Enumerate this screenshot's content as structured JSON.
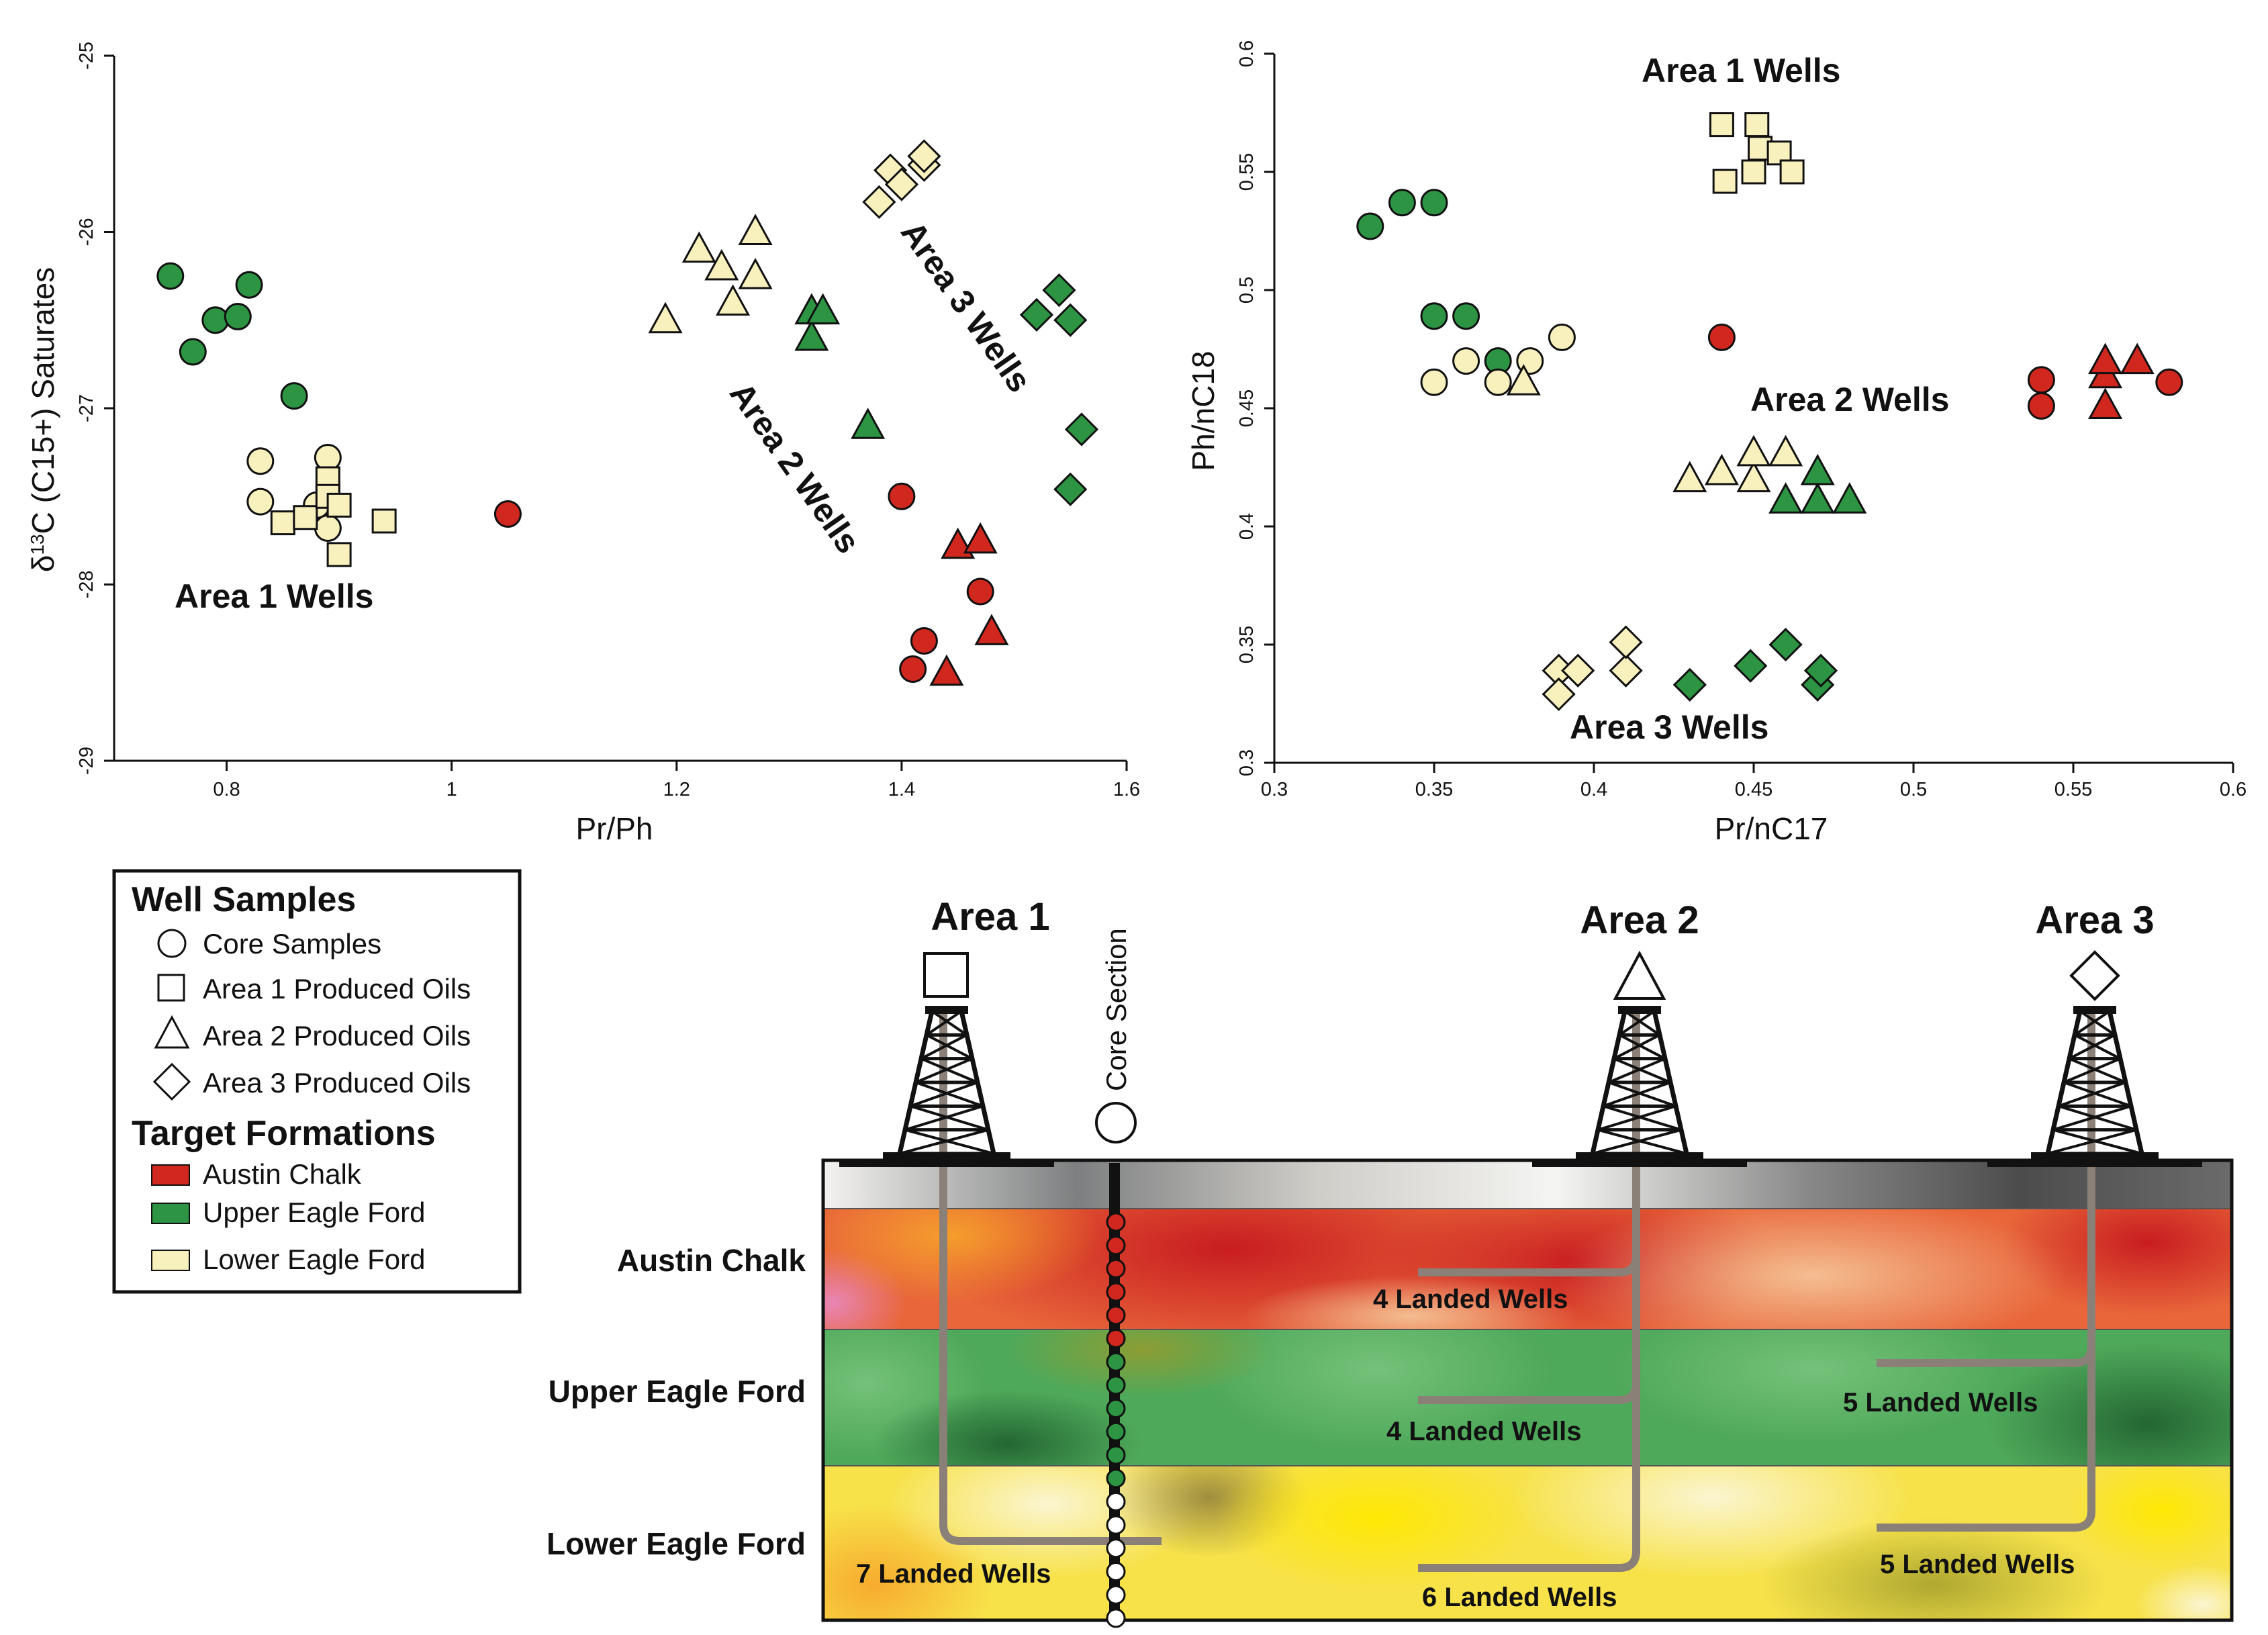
{
  "colors": {
    "austin_chalk": "#d0271f",
    "upper_eagle_ford": "#2c9443",
    "lower_eagle_ford": "#f8f1bd",
    "outline": "#111111",
    "pipe": "#8a8078"
  },
  "chart_data": [
    {
      "type": "scatter",
      "xlabel": "Pr/Ph",
      "ylabel": "δ13C (C15+) Saturates",
      "ylabel_main": "δ",
      "ylabel_sup": "13",
      "ylabel_rest": "C (C15+) Saturates",
      "xlim": [
        0.7,
        1.6
      ],
      "ylim": [
        -29,
        -25
      ],
      "y_reversed": true,
      "x_ticks": [
        "0.8",
        "1",
        "1.2",
        "1.4",
        "1.6"
      ],
      "y_ticks": [
        "-25",
        "-26",
        "-27",
        "-28",
        "-29"
      ],
      "group_labels": [
        "Area 1 Wells",
        "Area 2 Wells",
        "Area 3 Wells"
      ],
      "points": [
        {
          "x": 0.75,
          "y": -26.25,
          "shape": "circle",
          "color": "green"
        },
        {
          "x": 0.77,
          "y": -26.68,
          "shape": "circle",
          "color": "green"
        },
        {
          "x": 0.79,
          "y": -26.5,
          "shape": "circle",
          "color": "green"
        },
        {
          "x": 0.81,
          "y": -26.48,
          "shape": "circle",
          "color": "green"
        },
        {
          "x": 0.82,
          "y": -26.3,
          "shape": "circle",
          "color": "green"
        },
        {
          "x": 0.86,
          "y": -26.93,
          "shape": "circle",
          "color": "green"
        },
        {
          "x": 0.83,
          "y": -27.3,
          "shape": "circle",
          "color": "yellow"
        },
        {
          "x": 0.83,
          "y": -27.53,
          "shape": "circle",
          "color": "yellow"
        },
        {
          "x": 0.88,
          "y": -27.55,
          "shape": "circle",
          "color": "yellow"
        },
        {
          "x": 0.89,
          "y": -27.28,
          "shape": "circle",
          "color": "yellow"
        },
        {
          "x": 0.89,
          "y": -27.68,
          "shape": "circle",
          "color": "yellow"
        },
        {
          "x": 0.85,
          "y": -27.65,
          "shape": "square",
          "color": "yellow"
        },
        {
          "x": 0.87,
          "y": -27.62,
          "shape": "square",
          "color": "yellow"
        },
        {
          "x": 0.89,
          "y": -27.4,
          "shape": "square",
          "color": "yellow"
        },
        {
          "x": 0.89,
          "y": -27.5,
          "shape": "square",
          "color": "yellow"
        },
        {
          "x": 0.9,
          "y": -27.55,
          "shape": "square",
          "color": "yellow"
        },
        {
          "x": 0.9,
          "y": -27.83,
          "shape": "square",
          "color": "yellow"
        },
        {
          "x": 0.94,
          "y": -27.64,
          "shape": "square",
          "color": "yellow"
        },
        {
          "x": 1.05,
          "y": -27.6,
          "shape": "circle",
          "color": "red"
        },
        {
          "x": 1.19,
          "y": -26.5,
          "shape": "triangle",
          "color": "yellow"
        },
        {
          "x": 1.22,
          "y": -26.1,
          "shape": "triangle",
          "color": "yellow"
        },
        {
          "x": 1.24,
          "y": -26.2,
          "shape": "triangle",
          "color": "yellow"
        },
        {
          "x": 1.25,
          "y": -26.4,
          "shape": "triangle",
          "color": "yellow"
        },
        {
          "x": 1.27,
          "y": -26.0,
          "shape": "triangle",
          "color": "yellow"
        },
        {
          "x": 1.27,
          "y": -26.25,
          "shape": "triangle",
          "color": "yellow"
        },
        {
          "x": 1.32,
          "y": -26.45,
          "shape": "triangle",
          "color": "green"
        },
        {
          "x": 1.32,
          "y": -26.6,
          "shape": "triangle",
          "color": "green"
        },
        {
          "x": 1.33,
          "y": -26.45,
          "shape": "triangle",
          "color": "green"
        },
        {
          "x": 1.37,
          "y": -27.1,
          "shape": "triangle",
          "color": "green"
        },
        {
          "x": 1.4,
          "y": -27.5,
          "shape": "circle",
          "color": "red"
        },
        {
          "x": 1.41,
          "y": -28.48,
          "shape": "circle",
          "color": "red"
        },
        {
          "x": 1.42,
          "y": -28.32,
          "shape": "circle",
          "color": "red"
        },
        {
          "x": 1.44,
          "y": -28.5,
          "shape": "triangle",
          "color": "red"
        },
        {
          "x": 1.45,
          "y": -27.78,
          "shape": "triangle",
          "color": "red"
        },
        {
          "x": 1.47,
          "y": -27.75,
          "shape": "triangle",
          "color": "red"
        },
        {
          "x": 1.47,
          "y": -28.04,
          "shape": "circle",
          "color": "red"
        },
        {
          "x": 1.48,
          "y": -28.27,
          "shape": "triangle",
          "color": "red"
        },
        {
          "x": 1.38,
          "y": -25.83,
          "shape": "diamond",
          "color": "yellow"
        },
        {
          "x": 1.39,
          "y": -25.65,
          "shape": "diamond",
          "color": "yellow"
        },
        {
          "x": 1.4,
          "y": -25.73,
          "shape": "diamond",
          "color": "yellow"
        },
        {
          "x": 1.42,
          "y": -25.62,
          "shape": "diamond",
          "color": "yellow"
        },
        {
          "x": 1.42,
          "y": -25.57,
          "shape": "diamond",
          "color": "yellow"
        },
        {
          "x": 1.52,
          "y": -26.47,
          "shape": "diamond",
          "color": "green"
        },
        {
          "x": 1.54,
          "y": -26.33,
          "shape": "diamond",
          "color": "green"
        },
        {
          "x": 1.55,
          "y": -26.5,
          "shape": "diamond",
          "color": "green"
        },
        {
          "x": 1.56,
          "y": -27.12,
          "shape": "diamond",
          "color": "green"
        },
        {
          "x": 1.55,
          "y": -27.46,
          "shape": "diamond",
          "color": "green"
        }
      ]
    },
    {
      "type": "scatter",
      "xlabel": "Pr/nC17",
      "ylabel": "Ph/nC18",
      "xlim": [
        0.3,
        0.6
      ],
      "ylim": [
        0.3,
        0.6
      ],
      "x_ticks": [
        "0.3",
        "0.35",
        "0.4",
        "0.45",
        "0.5",
        "0.55",
        "0.6"
      ],
      "y_ticks": [
        "0.3",
        "0.35",
        "0.4",
        "0.45",
        "0.5",
        "0.55",
        "0.6"
      ],
      "group_labels": [
        "Area 1 Wells",
        "Area 2 Wells",
        "Area 3 Wells"
      ],
      "points": [
        {
          "x": 0.33,
          "y": 0.527,
          "shape": "circle",
          "color": "green"
        },
        {
          "x": 0.34,
          "y": 0.537,
          "shape": "circle",
          "color": "green"
        },
        {
          "x": 0.35,
          "y": 0.537,
          "shape": "circle",
          "color": "green"
        },
        {
          "x": 0.35,
          "y": 0.489,
          "shape": "circle",
          "color": "green"
        },
        {
          "x": 0.36,
          "y": 0.489,
          "shape": "circle",
          "color": "green"
        },
        {
          "x": 0.37,
          "y": 0.47,
          "shape": "circle",
          "color": "green"
        },
        {
          "x": 0.35,
          "y": 0.461,
          "shape": "circle",
          "color": "yellow"
        },
        {
          "x": 0.36,
          "y": 0.47,
          "shape": "circle",
          "color": "yellow"
        },
        {
          "x": 0.37,
          "y": 0.461,
          "shape": "circle",
          "color": "yellow"
        },
        {
          "x": 0.38,
          "y": 0.47,
          "shape": "circle",
          "color": "yellow"
        },
        {
          "x": 0.39,
          "y": 0.48,
          "shape": "circle",
          "color": "yellow"
        },
        {
          "x": 0.378,
          "y": 0.461,
          "shape": "triangle",
          "color": "yellow"
        },
        {
          "x": 0.44,
          "y": 0.57,
          "shape": "square",
          "color": "yellow"
        },
        {
          "x": 0.451,
          "y": 0.57,
          "shape": "square",
          "color": "yellow"
        },
        {
          "x": 0.452,
          "y": 0.56,
          "shape": "square",
          "color": "yellow"
        },
        {
          "x": 0.458,
          "y": 0.558,
          "shape": "square",
          "color": "yellow"
        },
        {
          "x": 0.441,
          "y": 0.546,
          "shape": "square",
          "color": "yellow"
        },
        {
          "x": 0.45,
          "y": 0.55,
          "shape": "square",
          "color": "yellow"
        },
        {
          "x": 0.462,
          "y": 0.55,
          "shape": "square",
          "color": "yellow"
        },
        {
          "x": 0.44,
          "y": 0.48,
          "shape": "circle",
          "color": "red"
        },
        {
          "x": 0.43,
          "y": 0.42,
          "shape": "triangle",
          "color": "yellow"
        },
        {
          "x": 0.44,
          "y": 0.423,
          "shape": "triangle",
          "color": "yellow"
        },
        {
          "x": 0.45,
          "y": 0.42,
          "shape": "triangle",
          "color": "yellow"
        },
        {
          "x": 0.45,
          "y": 0.431,
          "shape": "triangle",
          "color": "yellow"
        },
        {
          "x": 0.46,
          "y": 0.431,
          "shape": "triangle",
          "color": "yellow"
        },
        {
          "x": 0.46,
          "y": 0.411,
          "shape": "triangle",
          "color": "green"
        },
        {
          "x": 0.47,
          "y": 0.411,
          "shape": "triangle",
          "color": "green"
        },
        {
          "x": 0.47,
          "y": 0.423,
          "shape": "triangle",
          "color": "green"
        },
        {
          "x": 0.48,
          "y": 0.411,
          "shape": "triangle",
          "color": "green"
        },
        {
          "x": 0.54,
          "y": 0.462,
          "shape": "circle",
          "color": "red"
        },
        {
          "x": 0.54,
          "y": 0.451,
          "shape": "circle",
          "color": "red"
        },
        {
          "x": 0.56,
          "y": 0.451,
          "shape": "triangle",
          "color": "red"
        },
        {
          "x": 0.56,
          "y": 0.464,
          "shape": "triangle",
          "color": "red"
        },
        {
          "x": 0.56,
          "y": 0.47,
          "shape": "triangle",
          "color": "red"
        },
        {
          "x": 0.57,
          "y": 0.47,
          "shape": "triangle",
          "color": "red"
        },
        {
          "x": 0.58,
          "y": 0.461,
          "shape": "circle",
          "color": "red"
        },
        {
          "x": 0.389,
          "y": 0.339,
          "shape": "diamond",
          "color": "yellow"
        },
        {
          "x": 0.389,
          "y": 0.329,
          "shape": "diamond",
          "color": "yellow"
        },
        {
          "x": 0.395,
          "y": 0.339,
          "shape": "diamond",
          "color": "yellow"
        },
        {
          "x": 0.41,
          "y": 0.339,
          "shape": "diamond",
          "color": "yellow"
        },
        {
          "x": 0.41,
          "y": 0.351,
          "shape": "diamond",
          "color": "yellow"
        },
        {
          "x": 0.43,
          "y": 0.333,
          "shape": "diamond",
          "color": "green"
        },
        {
          "x": 0.449,
          "y": 0.341,
          "shape": "diamond",
          "color": "green"
        },
        {
          "x": 0.46,
          "y": 0.35,
          "shape": "diamond",
          "color": "green"
        },
        {
          "x": 0.47,
          "y": 0.333,
          "shape": "diamond",
          "color": "green"
        },
        {
          "x": 0.471,
          "y": 0.339,
          "shape": "diamond",
          "color": "green"
        }
      ]
    }
  ],
  "legend": {
    "well_samples_title": "Well Samples",
    "well_samples": [
      "Core Samples",
      "Area 1 Produced Oils",
      "Area 2 Produced Oils",
      "Area 3 Produced Oils"
    ],
    "formations_title": "Target Formations",
    "formations": [
      "Austin Chalk",
      "Upper Eagle Ford",
      "Lower Eagle Ford"
    ]
  },
  "cross_section": {
    "areas": [
      "Area 1",
      "Area 2",
      "Area 3"
    ],
    "core_section_label": "Core Section",
    "formation_labels": [
      "Austin Chalk",
      "Upper Eagle Ford",
      "Lower Eagle Ford"
    ],
    "landed_wells": {
      "area1_lower": "7 Landed Wells",
      "area2_austin": "4 Landed Wells",
      "area2_upper": "4 Landed Wells",
      "area2_lower": "6 Landed Wells",
      "area3_upper": "5 Landed Wells",
      "area3_lower": "5 Landed Wells"
    }
  }
}
